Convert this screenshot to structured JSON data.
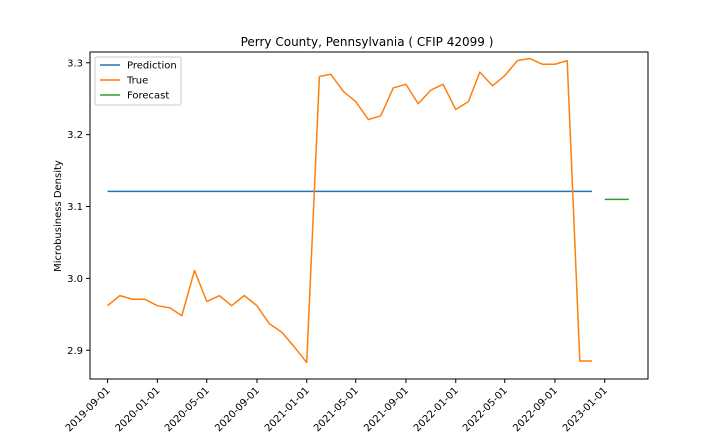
{
  "chart_data": {
    "type": "line",
    "title": "Perry County, Pennsylvania ( CFIP 42099 )",
    "xlabel": "",
    "ylabel": "Microbusiness Density",
    "ylim": [
      2.86,
      3.315
    ],
    "xlim": [
      "2019-07-20",
      "2023-04-17"
    ],
    "yticks": [
      2.9,
      3.0,
      3.1,
      3.2,
      3.3
    ],
    "yticklabels": [
      "2.9",
      "3.0",
      "3.1",
      "3.2",
      "3.3"
    ],
    "xticks": [
      "2019-09-01",
      "2020-01-01",
      "2020-05-01",
      "2020-09-01",
      "2021-01-01",
      "2021-05-01",
      "2021-09-01",
      "2022-01-01",
      "2022-05-01",
      "2022-09-01",
      "2023-01-01"
    ],
    "grid": false,
    "legend_position": "top-left",
    "series": [
      {
        "name": "Prediction",
        "color": "#1f77b4",
        "x": [
          "2019-09-01",
          "2022-12-01"
        ],
        "y": [
          3.121,
          3.121
        ]
      },
      {
        "name": "True",
        "color": "#ff7f0e",
        "x": [
          "2019-09-01",
          "2019-10-01",
          "2019-11-01",
          "2019-12-01",
          "2020-01-01",
          "2020-02-01",
          "2020-03-01",
          "2020-04-01",
          "2020-05-01",
          "2020-06-01",
          "2020-07-01",
          "2020-08-01",
          "2020-09-01",
          "2020-10-01",
          "2020-11-01",
          "2020-12-01",
          "2021-01-01",
          "2021-02-01",
          "2021-03-01",
          "2021-04-01",
          "2021-05-01",
          "2021-06-01",
          "2021-07-01",
          "2021-08-01",
          "2021-09-01",
          "2021-10-01",
          "2021-11-01",
          "2021-12-01",
          "2022-01-01",
          "2022-02-01",
          "2022-03-01",
          "2022-04-01",
          "2022-05-01",
          "2022-06-01",
          "2022-07-01",
          "2022-08-01",
          "2022-09-01",
          "2022-10-01",
          "2022-11-01",
          "2022-12-01"
        ],
        "y": [
          2.962,
          2.976,
          2.971,
          2.971,
          2.962,
          2.959,
          2.948,
          3.011,
          2.968,
          2.976,
          2.962,
          2.976,
          2.962,
          2.937,
          2.925,
          2.905,
          2.883,
          3.281,
          3.284,
          3.26,
          3.246,
          3.221,
          3.226,
          3.265,
          3.27,
          3.243,
          3.262,
          3.27,
          3.235,
          3.246,
          3.287,
          3.268,
          3.282,
          3.303,
          3.306,
          3.298,
          3.298,
          3.303,
          2.885,
          2.885
        ]
      },
      {
        "name": "Forecast",
        "color": "#2ca02c",
        "x": [
          "2023-01-01",
          "2023-03-01"
        ],
        "y": [
          3.11,
          3.11
        ]
      }
    ]
  }
}
